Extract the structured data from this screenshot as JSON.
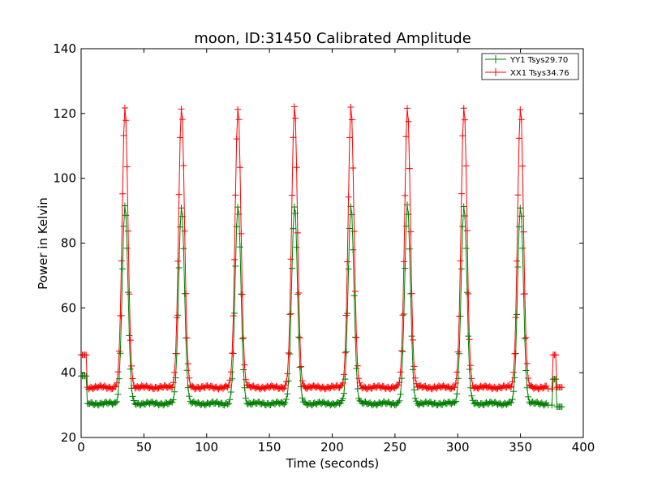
{
  "chart_data": {
    "type": "line",
    "title": "moon, ID:31450 Calibrated Amplitude",
    "xlabel": "Time (seconds)",
    "ylabel": "Power in Kelvin",
    "xlim": [
      0,
      400
    ],
    "ylim": [
      20,
      140
    ],
    "xticks": [
      0,
      50,
      100,
      150,
      200,
      250,
      300,
      350,
      400
    ],
    "yticks": [
      20,
      40,
      60,
      80,
      100,
      120,
      140
    ],
    "grid": false,
    "legend_position": "top-right",
    "series": [
      {
        "name": "YY1 Tsys29.70",
        "color": "#008000",
        "marker": "+",
        "baseline": 30.5,
        "peak": 91.5,
        "peak_times": [
          35,
          80,
          125,
          170,
          215,
          260,
          305,
          350
        ],
        "start_segment": {
          "t": [
            0,
            4
          ],
          "value": 39
        },
        "end_segment": {
          "t": [
            375,
            383
          ],
          "value": 38,
          "drop": 29.5
        }
      },
      {
        "name": "XX1 Tsys34.76",
        "color": "#ff0000",
        "marker": "+",
        "baseline": 35.5,
        "peak": 122,
        "peak_times": [
          35,
          80,
          125,
          170,
          215,
          260,
          305,
          350
        ],
        "start_segment": {
          "t": [
            0,
            4
          ],
          "value": 45.5
        },
        "end_segment": {
          "t": [
            375,
            383
          ],
          "value": 45.5,
          "drop": 35.5
        }
      }
    ]
  }
}
